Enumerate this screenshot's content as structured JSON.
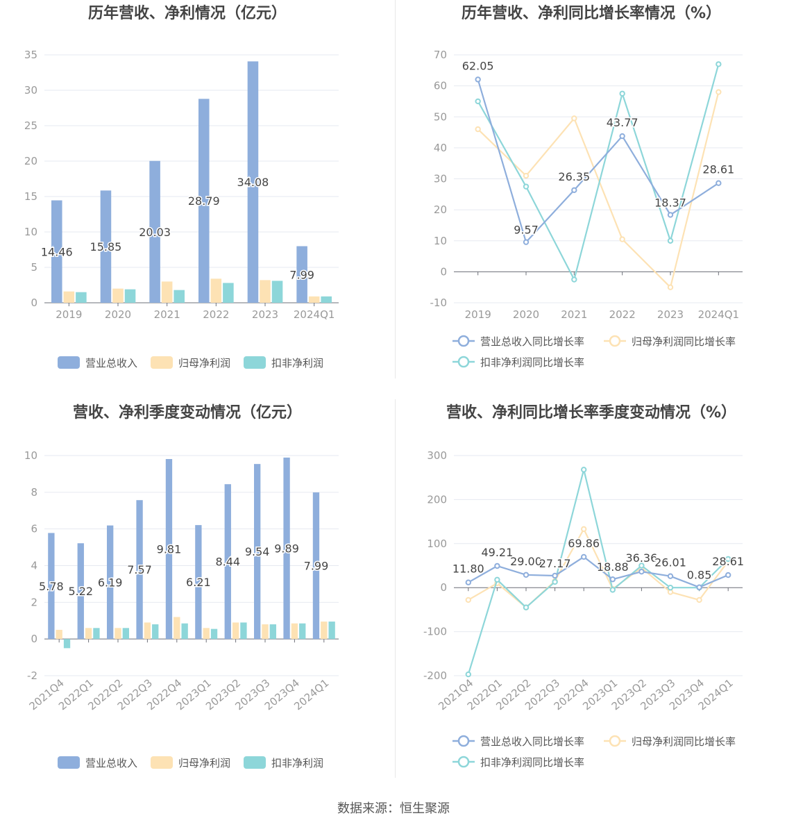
{
  "source": "数据来源：恒生聚源",
  "colors": {
    "revenue": "#8eaedc",
    "net_profit": "#fde2b4",
    "deducted": "#8dd6d9",
    "axis_text": "#999999",
    "grid": "#e6e9f0",
    "title": "#444444",
    "label": "#444444"
  },
  "chart_data": [
    {
      "type": "bar",
      "title": "历年营收、净利情况（亿元）",
      "categories": [
        "2019",
        "2020",
        "2021",
        "2022",
        "2023",
        "2024Q1"
      ],
      "series": [
        {
          "name": "营业总收入",
          "values": [
            14.46,
            15.85,
            20.03,
            28.79,
            34.08,
            7.99
          ],
          "labels": [
            "14.46",
            "15.85",
            "20.03",
            "28.79",
            "34.08",
            "7.99"
          ]
        },
        {
          "name": "归母净利润",
          "values": [
            1.6,
            2.0,
            3.0,
            3.4,
            3.2,
            0.9
          ]
        },
        {
          "name": "扣非净利润",
          "values": [
            1.5,
            1.9,
            1.8,
            2.8,
            3.1,
            0.9
          ]
        }
      ],
      "ylim": [
        0,
        35
      ],
      "yticks": [
        0,
        5,
        10,
        15,
        20,
        25,
        30,
        35
      ],
      "legend": "bottom-center",
      "grid": true
    },
    {
      "type": "line",
      "title": "历年营收、净利同比增长率情况（%）",
      "categories": [
        "2019",
        "2020",
        "2021",
        "2022",
        "2023",
        "2024Q1"
      ],
      "series": [
        {
          "name": "营业总收入同比增长率",
          "values": [
            62.05,
            9.57,
            26.35,
            43.77,
            18.37,
            28.61
          ],
          "labels": [
            "62.05",
            "9.57",
            "26.35",
            "43.77",
            "18.37",
            "28.61"
          ]
        },
        {
          "name": "归母净利润同比增长率",
          "values": [
            46,
            31,
            49.5,
            10.5,
            -5,
            58
          ]
        },
        {
          "name": "扣非净利润同比增长率",
          "values": [
            55,
            27.5,
            -2.5,
            57.5,
            10,
            67
          ]
        }
      ],
      "ylim": [
        -10,
        70
      ],
      "yticks": [
        -10,
        0,
        10,
        20,
        30,
        40,
        50,
        60,
        70
      ],
      "legend": "bottom-center",
      "grid": true
    },
    {
      "type": "bar",
      "title": "营收、净利季度变动情况（亿元）",
      "categories": [
        "2021Q4",
        "2022Q1",
        "2022Q2",
        "2022Q3",
        "2022Q4",
        "2023Q1",
        "2023Q2",
        "2023Q3",
        "2023Q4",
        "2024Q1"
      ],
      "series": [
        {
          "name": "营业总收入",
          "values": [
            5.78,
            5.22,
            6.19,
            7.57,
            9.81,
            6.21,
            8.44,
            9.54,
            9.89,
            7.99
          ],
          "labels": [
            "5.78",
            "5.22",
            "6.19",
            "7.57",
            "9.81",
            "6.21",
            "8.44",
            "9.54",
            "9.89",
            "7.99"
          ]
        },
        {
          "name": "归母净利润",
          "values": [
            0.5,
            0.6,
            0.6,
            0.9,
            1.2,
            0.6,
            0.9,
            0.8,
            0.85,
            0.95
          ]
        },
        {
          "name": "扣非净利润",
          "values": [
            -0.5,
            0.6,
            0.6,
            0.8,
            0.85,
            0.55,
            0.9,
            0.8,
            0.85,
            0.95
          ]
        }
      ],
      "ylim": [
        -2,
        10
      ],
      "yticks": [
        -2,
        0,
        2,
        4,
        6,
        8,
        10
      ],
      "legend": "bottom-center",
      "grid": true
    },
    {
      "type": "line",
      "title": "营收、净利同比增长率季度变动情况（%）",
      "categories": [
        "2021Q4",
        "2022Q1",
        "2022Q2",
        "2022Q3",
        "2022Q4",
        "2023Q1",
        "2023Q2",
        "2023Q3",
        "2023Q4",
        "2024Q1"
      ],
      "series": [
        {
          "name": "营业总收入同比增长率",
          "values": [
            11.8,
            49.21,
            29.0,
            27.17,
            69.86,
            18.88,
            36.36,
            26.01,
            0.85,
            28.61
          ],
          "labels": [
            "11.80",
            "49.21",
            "29.00",
            "27.17",
            "69.86",
            "18.88",
            "36.36",
            "26.01",
            "0.85",
            "28.61"
          ]
        },
        {
          "name": "归母净利润同比增长率",
          "values": [
            -28,
            10,
            -45,
            15,
            133,
            -3,
            45,
            -10,
            -28,
            60
          ]
        },
        {
          "name": "扣非净利润同比增长率",
          "values": [
            -197,
            18,
            -45,
            13,
            268,
            -5,
            50,
            0,
            0,
            65
          ]
        }
      ],
      "ylim": [
        -200,
        300
      ],
      "yticks": [
        -200,
        -100,
        0,
        100,
        200,
        300
      ],
      "legend": "bottom-center",
      "grid": true
    }
  ]
}
